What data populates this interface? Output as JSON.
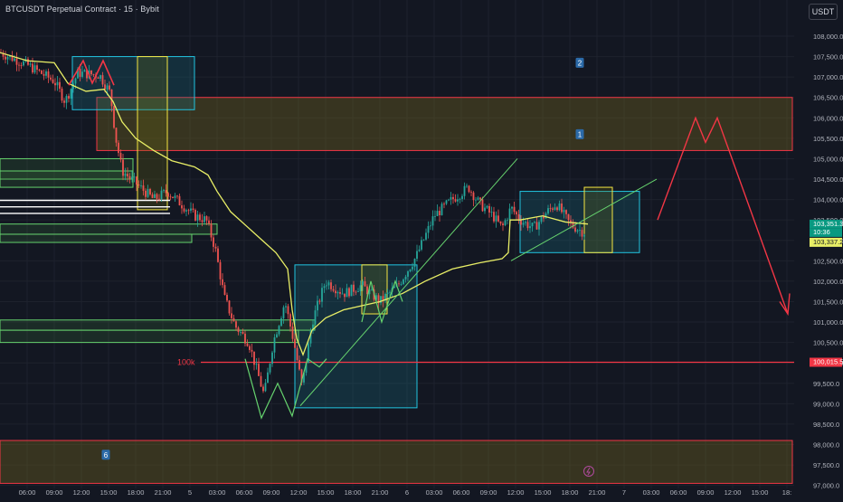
{
  "header": {
    "title": "BTCUSDT Perpetual Contract · 15 · Bybit",
    "currency": "USDT"
  },
  "chart_data": {
    "type": "candlestick",
    "price_ticks": [
      "108,000.0",
      "107,500.0",
      "107,000.0",
      "106,500.0",
      "106,000.0",
      "105,500.0",
      "105,000.0",
      "104,500.0",
      "104,000.0",
      "103,500.0",
      "103,000.0",
      "102,500.0",
      "102,000.0",
      "101,500.0",
      "101,000.0",
      "100,500.0",
      "100,000.0",
      "99,500.0",
      "99,000.0",
      "98,500.0",
      "98,000.0",
      "97,500.0",
      "97,000.0"
    ],
    "time_ticks": [
      "06:00",
      "09:00",
      "12:00",
      "15:00",
      "18:00",
      "21:00",
      "5",
      "03:00",
      "06:00",
      "09:00",
      "12:00",
      "15:00",
      "18:00",
      "21:00",
      "6",
      "03:00",
      "06:00",
      "09:00",
      "12:00",
      "15:00",
      "18:00",
      "21:00",
      "7",
      "03:00",
      "06:00",
      "09:00",
      "12:00",
      "15:00",
      "18:"
    ],
    "price_labels": {
      "last_price": "103,351.3",
      "countdown": "10:36",
      "vwap": "103,337.2",
      "level_100k": "100,015.5"
    },
    "annotations": {
      "level_100k_text": "100k",
      "zone_markers": [
        "2",
        "1",
        "6"
      ]
    },
    "ylim": [
      96900,
      108500
    ],
    "colors": {
      "up": "#26a69a",
      "down": "#ef5350",
      "vwap": "#e8ee66",
      "zone_red": "#f23645",
      "zone_cyan": "#22c4e0",
      "zone_yellow": "#f5e642",
      "zone_green": "#66d36e",
      "path_green": "#66d36e",
      "path_red": "#f23645"
    }
  }
}
